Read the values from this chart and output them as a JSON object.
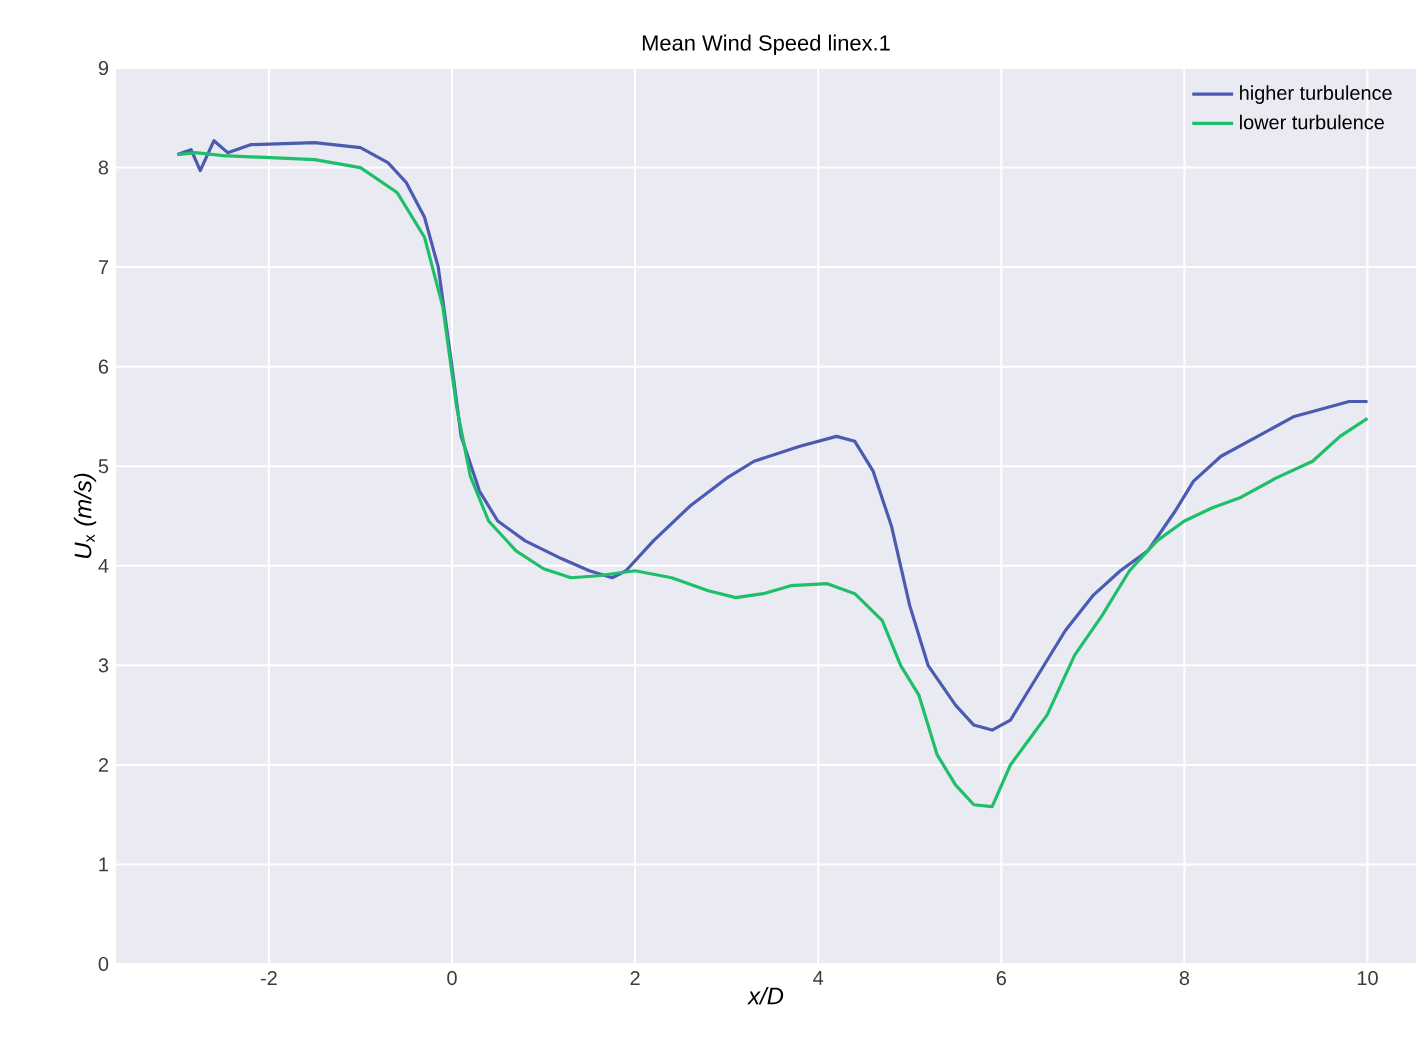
{
  "chart_data": {
    "type": "line",
    "title": "Mean Wind Speed linex.1",
    "xlabel": "x/D",
    "ylabel": "*U*$_{x}$ *(m/s)*",
    "xlim": [
      -3.67,
      10.53
    ],
    "ylim": [
      0,
      9
    ],
    "xticks": [
      -2,
      0,
      2,
      4,
      6,
      8,
      10
    ],
    "yticks": [
      0,
      1,
      2,
      3,
      4,
      5,
      6,
      7,
      8,
      9
    ],
    "grid": true,
    "legend": "top right",
    "series": [
      {
        "name": "higher turbulence",
        "color": "#4c5ab2",
        "x": [
          -3.0,
          -2.85,
          -2.75,
          -2.6,
          -2.45,
          -2.2,
          -1.5,
          -1.0,
          -0.7,
          -0.5,
          -0.3,
          -0.15,
          0,
          0.1,
          0.3,
          0.5,
          0.8,
          1.2,
          1.5,
          1.75,
          1.9,
          2.2,
          2.6,
          3.0,
          3.3,
          3.8,
          4.2,
          4.4,
          4.6,
          4.8,
          5.0,
          5.2,
          5.5,
          5.7,
          5.9,
          6.1,
          6.4,
          6.7,
          7.0,
          7.3,
          7.6,
          7.9,
          8.1,
          8.4,
          8.8,
          9.2,
          9.6,
          9.8,
          10.0
        ],
        "values": [
          8.13,
          8.18,
          7.97,
          8.27,
          8.15,
          8.23,
          8.25,
          8.2,
          8.05,
          7.85,
          7.5,
          7.0,
          6.0,
          5.3,
          4.75,
          4.45,
          4.25,
          4.07,
          3.95,
          3.88,
          3.95,
          4.25,
          4.6,
          4.88,
          5.05,
          5.2,
          5.3,
          5.25,
          4.95,
          4.4,
          3.6,
          3.0,
          2.6,
          2.4,
          2.35,
          2.45,
          2.9,
          3.35,
          3.7,
          3.95,
          4.15,
          4.55,
          4.85,
          5.1,
          5.3,
          5.5,
          5.6,
          5.65,
          5.65
        ]
      },
      {
        "name": "lower turbulence",
        "color": "#1fbf6a",
        "x": [
          -3.0,
          -2.8,
          -2.5,
          -1.5,
          -1.0,
          -0.6,
          -0.3,
          -0.1,
          0.05,
          0.2,
          0.4,
          0.7,
          1.0,
          1.3,
          1.6,
          2.0,
          2.4,
          2.8,
          3.1,
          3.4,
          3.7,
          4.1,
          4.4,
          4.7,
          4.9,
          5.1,
          5.3,
          5.5,
          5.7,
          5.9,
          6.1,
          6.3,
          6.5,
          6.8,
          7.1,
          7.4,
          7.7,
          8.0,
          8.3,
          8.6,
          9.0,
          9.4,
          9.7,
          10.0
        ],
        "values": [
          8.13,
          8.15,
          8.12,
          8.08,
          8.0,
          7.75,
          7.3,
          6.6,
          5.6,
          4.9,
          4.45,
          4.15,
          3.97,
          3.88,
          3.9,
          3.95,
          3.88,
          3.75,
          3.68,
          3.72,
          3.8,
          3.82,
          3.72,
          3.45,
          3.0,
          2.7,
          2.1,
          1.8,
          1.6,
          1.58,
          2.0,
          2.25,
          2.5,
          3.1,
          3.5,
          3.95,
          4.25,
          4.45,
          4.58,
          4.68,
          4.88,
          5.05,
          5.3,
          5.48
        ]
      }
    ]
  }
}
